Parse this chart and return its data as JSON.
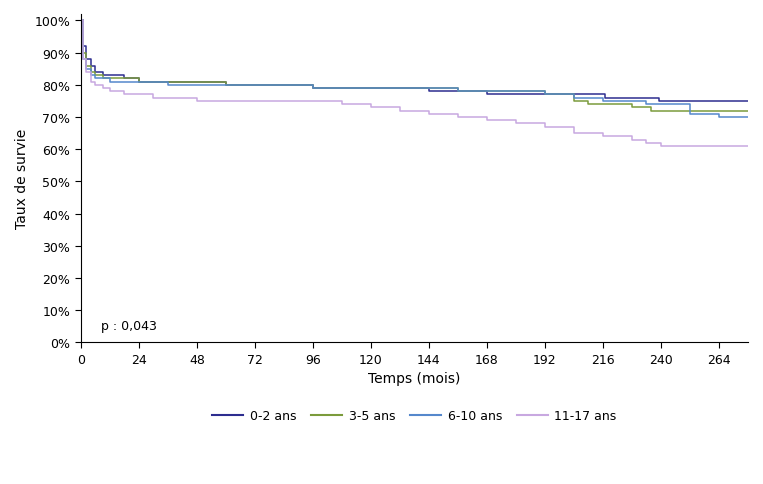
{
  "title": "",
  "xlabel": "Temps (mois)",
  "ylabel": "Taux de survie",
  "xlim": [
    0,
    276
  ],
  "ylim": [
    0,
    1.02
  ],
  "yticks": [
    0.0,
    0.1,
    0.2,
    0.3,
    0.4,
    0.5,
    0.6,
    0.7,
    0.8,
    0.9,
    1.0
  ],
  "ytick_labels": [
    "0%",
    "10%",
    "20%",
    "30%",
    "40%",
    "50%",
    "60%",
    "70%",
    "80%",
    "90%",
    "100%"
  ],
  "xticks": [
    0,
    24,
    48,
    72,
    96,
    120,
    144,
    168,
    192,
    216,
    240,
    264
  ],
  "p_text": "p : 0,043",
  "legend_labels": [
    "0-2 ans",
    "3-5 ans",
    "6-10 ans",
    "11-17 ans"
  ],
  "line_colors": [
    "#2d2d8f",
    "#7b9b3c",
    "#5588cc",
    "#c8a8e0"
  ],
  "series": {
    "0-2 ans": {
      "x": [
        0,
        1,
        2,
        4,
        6,
        9,
        12,
        18,
        24,
        30,
        36,
        48,
        60,
        72,
        84,
        96,
        108,
        120,
        132,
        144,
        156,
        168,
        180,
        192,
        204,
        216,
        217,
        228,
        238,
        239,
        252,
        264,
        276
      ],
      "y": [
        1.0,
        0.92,
        0.88,
        0.86,
        0.84,
        0.83,
        0.83,
        0.82,
        0.81,
        0.81,
        0.81,
        0.81,
        0.8,
        0.8,
        0.8,
        0.79,
        0.79,
        0.79,
        0.79,
        0.78,
        0.78,
        0.77,
        0.77,
        0.77,
        0.77,
        0.77,
        0.76,
        0.76,
        0.76,
        0.75,
        0.75,
        0.75,
        0.75
      ]
    },
    "3-5 ans": {
      "x": [
        0,
        1,
        2,
        4,
        6,
        9,
        12,
        18,
        24,
        30,
        36,
        48,
        60,
        72,
        84,
        96,
        108,
        120,
        132,
        144,
        156,
        168,
        180,
        192,
        204,
        210,
        216,
        228,
        236,
        252,
        264,
        276
      ],
      "y": [
        1.0,
        0.9,
        0.86,
        0.84,
        0.83,
        0.82,
        0.82,
        0.82,
        0.81,
        0.81,
        0.81,
        0.81,
        0.8,
        0.8,
        0.8,
        0.79,
        0.79,
        0.79,
        0.79,
        0.79,
        0.78,
        0.78,
        0.78,
        0.77,
        0.75,
        0.74,
        0.74,
        0.73,
        0.72,
        0.72,
        0.72,
        0.72
      ]
    },
    "6-10 ans": {
      "x": [
        0,
        1,
        2,
        4,
        6,
        9,
        12,
        18,
        24,
        30,
        36,
        48,
        60,
        72,
        84,
        96,
        108,
        120,
        132,
        144,
        156,
        168,
        180,
        192,
        204,
        216,
        228,
        234,
        240,
        252,
        264,
        272,
        276
      ],
      "y": [
        1.0,
        0.88,
        0.85,
        0.83,
        0.82,
        0.82,
        0.81,
        0.81,
        0.81,
        0.81,
        0.8,
        0.8,
        0.8,
        0.8,
        0.8,
        0.79,
        0.79,
        0.79,
        0.79,
        0.79,
        0.78,
        0.78,
        0.78,
        0.77,
        0.76,
        0.75,
        0.75,
        0.74,
        0.74,
        0.71,
        0.7,
        0.7,
        0.7
      ]
    },
    "11-17 ans": {
      "x": [
        0,
        1,
        2,
        4,
        6,
        9,
        12,
        18,
        24,
        30,
        36,
        48,
        60,
        72,
        84,
        96,
        108,
        120,
        132,
        144,
        156,
        168,
        180,
        192,
        204,
        216,
        228,
        234,
        240,
        252,
        264,
        276
      ],
      "y": [
        1.0,
        0.88,
        0.84,
        0.81,
        0.8,
        0.79,
        0.78,
        0.77,
        0.77,
        0.76,
        0.76,
        0.75,
        0.75,
        0.75,
        0.75,
        0.75,
        0.74,
        0.73,
        0.72,
        0.71,
        0.7,
        0.69,
        0.68,
        0.67,
        0.65,
        0.64,
        0.63,
        0.62,
        0.61,
        0.61,
        0.61,
        0.61
      ]
    }
  }
}
